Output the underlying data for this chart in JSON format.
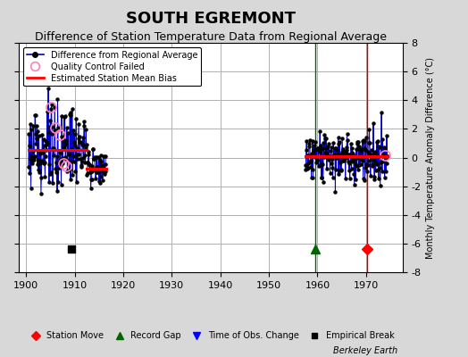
{
  "title": "SOUTH EGREMONT",
  "subtitle": "Difference of Station Temperature Data from Regional Average",
  "ylabel_right": "Monthly Temperature Anomaly Difference (°C)",
  "xlim": [
    1898.5,
    1977.5
  ],
  "ylim": [
    -8,
    8
  ],
  "yticks": [
    -8,
    -6,
    -4,
    -2,
    0,
    2,
    4,
    6,
    8
  ],
  "xticks": [
    1900,
    1910,
    1920,
    1930,
    1940,
    1950,
    1960,
    1970
  ],
  "bg_color": "#d8d8d8",
  "plot_bg_color": "#ffffff",
  "grid_color": "#b0b0b0",
  "title_fontsize": 13,
  "subtitle_fontsize": 9,
  "segment1_start": 1900.5,
  "segment1_end": 1912.5,
  "segment1_bias": 0.55,
  "segment2_start": 1912.5,
  "segment2_end": 1916.5,
  "segment2_bias": -0.75,
  "segment3_start": 1957.5,
  "segment3_end": 1974.5,
  "segment3_bias": 0.08,
  "empirical_break_x": 1909.3,
  "record_gap_x": 1959.5,
  "station_move_x": 1970.3,
  "event_y": -6.35,
  "qc_fail_seg1": [
    [
      1905.2,
      3.5
    ],
    [
      1906.1,
      2.1
    ],
    [
      1907.0,
      1.6
    ],
    [
      1907.7,
      -0.4
    ],
    [
      1908.3,
      -0.6
    ]
  ],
  "qc_fail_seg3": [
    [
      1973.9,
      0.15
    ]
  ],
  "seg1_seed": 123,
  "seg2_seed": 456,
  "seg3_seed": 789
}
